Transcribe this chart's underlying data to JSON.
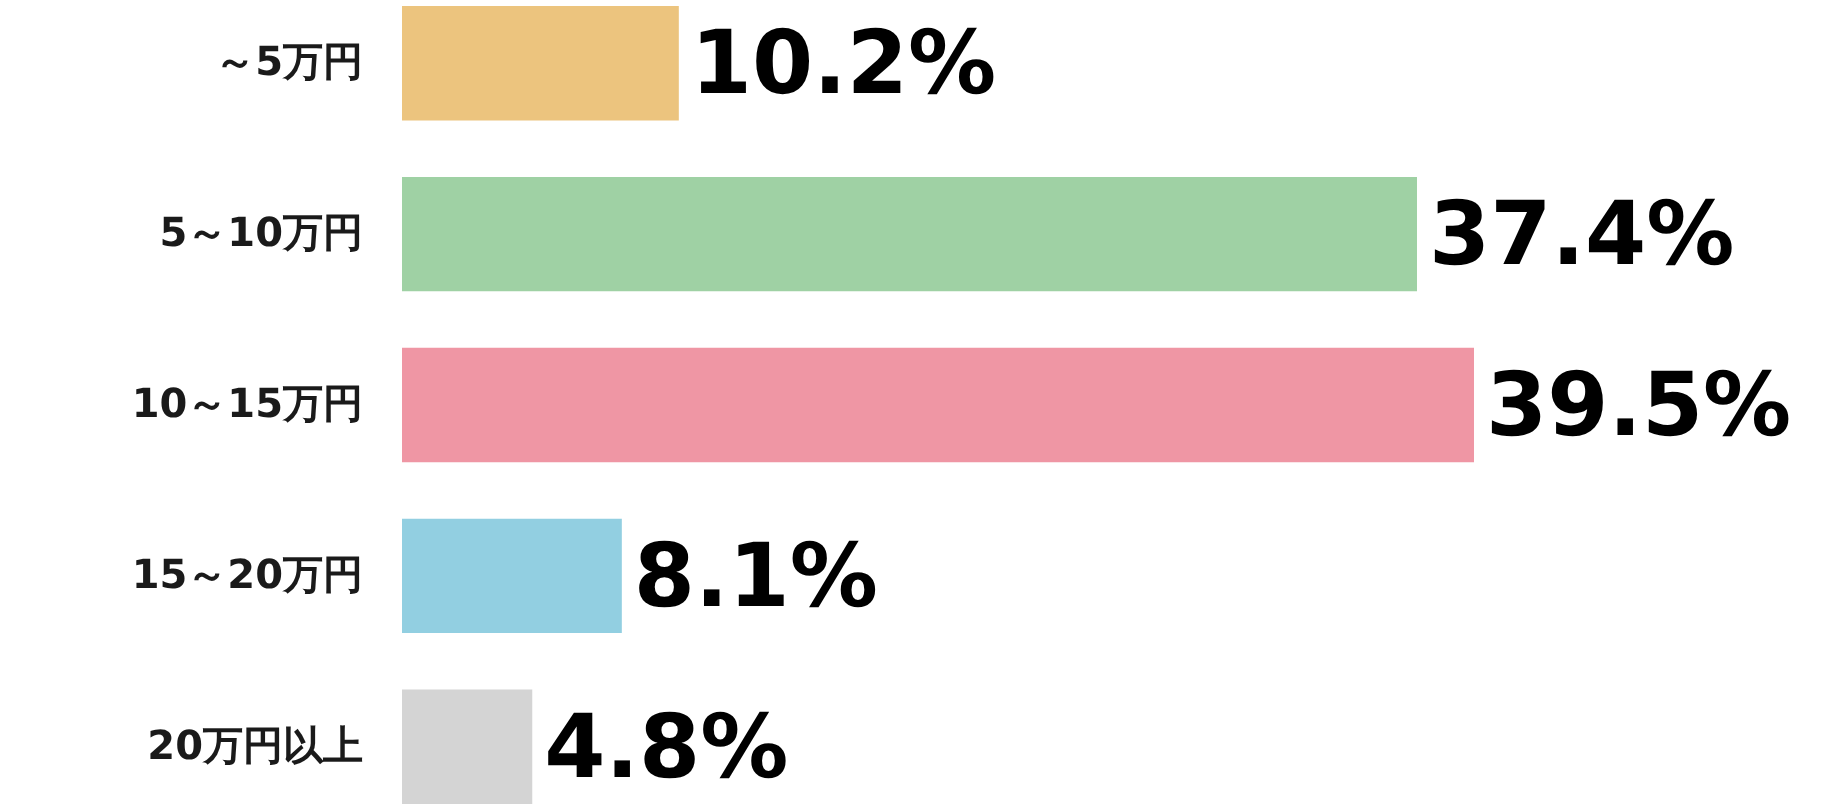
{
  "chart_data": {
    "type": "bar",
    "orientation": "horizontal",
    "categories": [
      "～5万円",
      "5～10万円",
      "10～15万円",
      "15～20万円",
      "20万円以上"
    ],
    "values": [
      10.2,
      37.4,
      39.5,
      8.1,
      4.8
    ],
    "colors": [
      "#ecc47e",
      "#9fd1a4",
      "#ef96a4",
      "#92cfe1",
      "#d4d4d4"
    ],
    "value_labels": [
      "10.2%",
      "37.4%",
      "39.5%",
      "8.1%",
      "4.8%"
    ],
    "tick_labels": "y"
  }
}
